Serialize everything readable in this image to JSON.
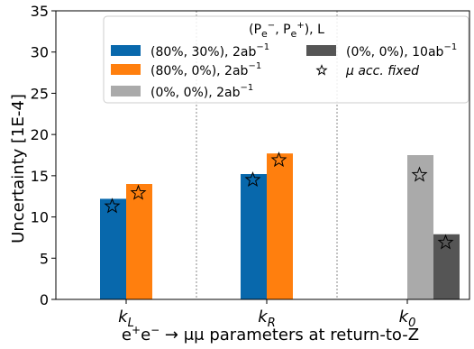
{
  "chart_data": {
    "type": "bar",
    "xlabel_parts": {
      "pre": "e",
      "sup1": "+",
      "mid": "e",
      "sup2": "−",
      "post": " → μμ parameters at return-to-Z"
    },
    "ylabel": "Uncertainty [1E-4]",
    "ylim": [
      0,
      35
    ],
    "yticks": [
      0,
      5,
      10,
      15,
      20,
      25,
      30,
      35
    ],
    "grid": false,
    "categories": [
      {
        "base": "k",
        "sub": "L"
      },
      {
        "base": "k",
        "sub": "R"
      },
      {
        "base": "k",
        "sub": "0"
      }
    ],
    "legend": {
      "title": "(P_e−, P_e+), L",
      "placement": "upper-right",
      "title_parts": [
        "(P",
        "e",
        "−",
        ", P",
        "e",
        "+",
        "), L"
      ]
    },
    "series": [
      {
        "name": "(80%, 30%), 2ab−1",
        "label_main": "(80%, 30%), 2ab",
        "label_sup": "−1",
        "color": "#0868ac",
        "values": [
          12.2,
          15.2,
          null
        ],
        "starred_values": [
          11.3,
          14.5,
          null
        ]
      },
      {
        "name": "(80%, 0%), 2ab−1",
        "label_main": "(80%, 0%), 2ab",
        "label_sup": "−1",
        "color": "#ff7f0e",
        "values": [
          14.0,
          17.7,
          null
        ],
        "starred_values": [
          12.9,
          16.9,
          null
        ]
      },
      {
        "name": "(0%, 0%), 2ab−1",
        "label_main": "(0%, 0%), 2ab",
        "label_sup": "−1",
        "color": "#aaaaaa",
        "values": [
          null,
          null,
          17.5
        ],
        "starred_values": [
          null,
          null,
          15.1
        ]
      },
      {
        "name": "(0%, 0%), 10ab−1",
        "label_main": "(0%, 0%), 10ab",
        "label_sup": "−1",
        "color": "#555555",
        "values": [
          null,
          null,
          7.9
        ],
        "starred_values": [
          null,
          null,
          6.9
        ]
      }
    ],
    "star_marker": {
      "label": "μ acc. fixed",
      "symbol": "star"
    }
  }
}
